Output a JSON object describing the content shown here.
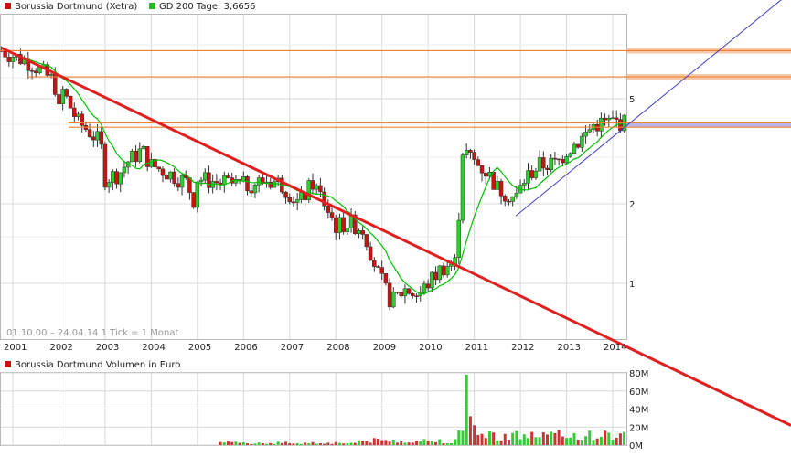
{
  "legend": {
    "price_label": "Borussia Dortmund (Xetra)",
    "ma_label": "GD 200 Tage: 3,6656",
    "volume_label": "Borussia Dortmund Volumen in Euro"
  },
  "info": "01.10.00 – 24.04.14   1 Tick = 1 Monat",
  "colors": {
    "up": "#2ecc2e",
    "down": "#cc1111",
    "ma": "#00c000",
    "trend": "#e02020",
    "resistance": "#f08030",
    "channel": "#4040c0",
    "zone": "#b8b8e8",
    "grid": "#d8d8d8",
    "volume_up": "#33cc33",
    "volume_down": "#cc3333"
  },
  "chart_data": [
    {
      "type": "candlestick",
      "series": [
        {
          "name": "Borussia Dortmund (Xetra)"
        },
        {
          "name": "GD 200 Tage: 3,6656"
        }
      ],
      "y_scale": "log",
      "ylim": [
        0.7,
        8.6
      ],
      "y_ticks": [
        1,
        2,
        5
      ],
      "x_ticks": [
        "2001",
        "2002",
        "2003",
        "2004",
        "2005",
        "2006",
        "2007",
        "2008",
        "2009",
        "2010",
        "2011",
        "2012",
        "2013",
        "2014"
      ],
      "anchors": [
        [
          2000.75,
          7.6
        ],
        [
          2001.0,
          7.3
        ],
        [
          2001.4,
          6.8
        ],
        [
          2001.9,
          5.8
        ],
        [
          2002.0,
          4.5
        ],
        [
          2002.05,
          5.5
        ],
        [
          2002.4,
          4.1
        ],
        [
          2002.7,
          3.7
        ],
        [
          2002.9,
          3.4
        ],
        [
          2003.0,
          2.5
        ],
        [
          2003.3,
          2.6
        ],
        [
          2003.5,
          2.9
        ],
        [
          2003.8,
          3.2
        ],
        [
          2004.0,
          2.8
        ],
        [
          2004.4,
          2.6
        ],
        [
          2004.8,
          2.4
        ],
        [
          2004.9,
          2.0
        ],
        [
          2005.0,
          2.5
        ],
        [
          2005.5,
          2.4
        ],
        [
          2006.0,
          2.35
        ],
        [
          2006.5,
          2.45
        ],
        [
          2006.8,
          2.4
        ],
        [
          2007.0,
          2.2
        ],
        [
          2007.2,
          2.0
        ],
        [
          2007.5,
          2.4
        ],
        [
          2007.7,
          2.1
        ],
        [
          2008.0,
          1.65
        ],
        [
          2008.3,
          1.7
        ],
        [
          2008.6,
          1.6
        ],
        [
          2008.9,
          1.1
        ],
        [
          2009.2,
          0.85
        ],
        [
          2009.5,
          0.95
        ],
        [
          2009.8,
          0.9
        ],
        [
          2010.0,
          1.0
        ],
        [
          2010.3,
          1.15
        ],
        [
          2010.6,
          1.2
        ],
        [
          2010.75,
          3.2
        ],
        [
          2011.0,
          2.9
        ],
        [
          2011.3,
          2.6
        ],
        [
          2011.5,
          2.3
        ],
        [
          2011.9,
          2.1
        ],
        [
          2012.1,
          2.5
        ],
        [
          2012.4,
          2.8
        ],
        [
          2012.8,
          2.85
        ],
        [
          2013.0,
          3.2
        ],
        [
          2013.3,
          3.5
        ],
        [
          2013.6,
          4.0
        ],
        [
          2014.0,
          4.1
        ],
        [
          2014.3,
          4.05
        ]
      ],
      "trendline": {
        "from": [
          2000.75,
          7.8
        ],
        "to": [
          2010.7,
          1.15
        ]
      },
      "resistance_levels": [
        7.6,
        6.05,
        4.05,
        3.9
      ],
      "support_channel": {
        "from": [
          2011.9,
          1.8
        ],
        "to": [
          2014.3,
          3.95
        ]
      }
    },
    {
      "type": "bar",
      "series": [
        {
          "name": "Borussia Dortmund Volumen in Euro"
        }
      ],
      "ylim": [
        0,
        80
      ],
      "y_ticks_label": [
        "0M",
        "20M",
        "40M",
        "60M",
        "80M"
      ],
      "spike": {
        "x": 2010.8,
        "value": 78
      }
    }
  ]
}
